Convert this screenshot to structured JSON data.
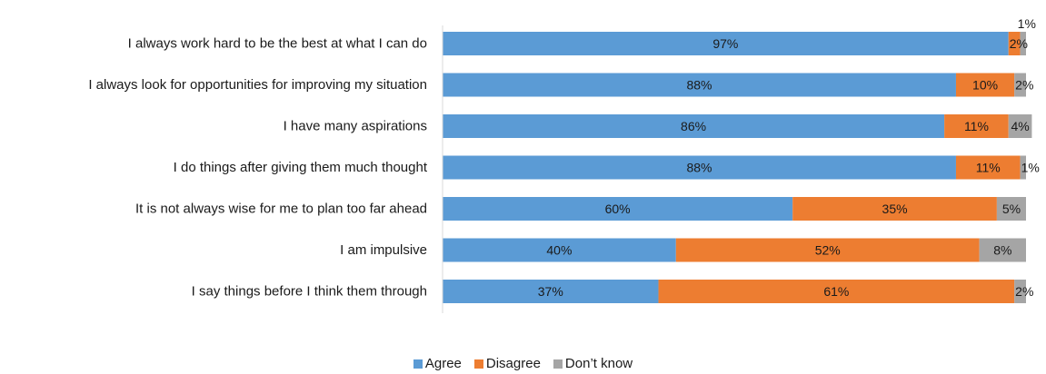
{
  "chart_data": {
    "type": "bar",
    "orientation": "horizontal",
    "stacked": true,
    "categories": [
      "I always work hard to be the best at what I can do",
      "I always look for opportunities for improving my situation",
      "I have many aspirations",
      "I do things after giving them much thought",
      "It is not always wise for me to plan too far ahead",
      "I am impulsive",
      "I say things before I think them through"
    ],
    "series": [
      {
        "name": "Agree",
        "color": "#5b9bd5",
        "values": [
          97,
          88,
          86,
          88,
          60,
          40,
          37
        ],
        "labels": [
          "97%",
          "88%",
          "86%",
          "88%",
          "60%",
          "40%",
          "37%"
        ]
      },
      {
        "name": "Disagree",
        "color": "#ed7d31",
        "values": [
          2,
          10,
          11,
          11,
          35,
          52,
          61
        ],
        "labels": [
          "2%",
          "10%",
          "11%",
          "11%",
          "35%",
          "52%",
          "61%"
        ]
      },
      {
        "name": "Don’t know",
        "color": "#a5a5a5",
        "values": [
          1,
          2,
          4,
          1,
          5,
          8,
          2
        ],
        "labels": [
          "1%",
          "2%",
          "4%",
          "1%",
          "5%",
          "8%",
          "2%"
        ]
      }
    ],
    "xlim": [
      0,
      100
    ],
    "grid": false,
    "legend_position": "bottom"
  }
}
